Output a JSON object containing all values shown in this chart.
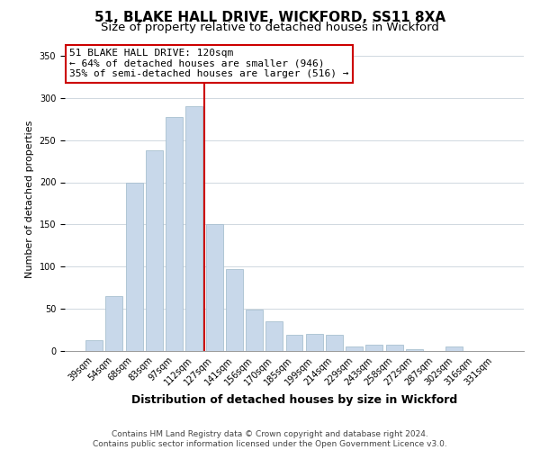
{
  "title": "51, BLAKE HALL DRIVE, WICKFORD, SS11 8XA",
  "subtitle": "Size of property relative to detached houses in Wickford",
  "xlabel": "Distribution of detached houses by size in Wickford",
  "ylabel": "Number of detached properties",
  "bar_labels": [
    "39sqm",
    "54sqm",
    "68sqm",
    "83sqm",
    "97sqm",
    "112sqm",
    "127sqm",
    "141sqm",
    "156sqm",
    "170sqm",
    "185sqm",
    "199sqm",
    "214sqm",
    "229sqm",
    "243sqm",
    "258sqm",
    "272sqm",
    "287sqm",
    "302sqm",
    "316sqm",
    "331sqm"
  ],
  "bar_values": [
    13,
    65,
    200,
    238,
    277,
    290,
    150,
    97,
    49,
    35,
    19,
    20,
    19,
    5,
    8,
    7,
    2,
    0,
    5,
    0,
    0
  ],
  "bar_color": "#c8d8ea",
  "bar_edge_color": "#a8c0d0",
  "vline_x": 5.5,
  "vline_color": "#cc0000",
  "annotation_title": "51 BLAKE HALL DRIVE: 120sqm",
  "annotation_line1": "← 64% of detached houses are smaller (946)",
  "annotation_line2": "35% of semi-detached houses are larger (516) →",
  "annotation_box_facecolor": "#ffffff",
  "annotation_box_edgecolor": "#cc0000",
  "ylim": [
    0,
    360
  ],
  "yticks": [
    0,
    50,
    100,
    150,
    200,
    250,
    300,
    350
  ],
  "background_color": "#ffffff",
  "footer_line1": "Contains HM Land Registry data © Crown copyright and database right 2024.",
  "footer_line2": "Contains public sector information licensed under the Open Government Licence v3.0.",
  "title_fontsize": 11,
  "subtitle_fontsize": 9.5,
  "xlabel_fontsize": 9,
  "ylabel_fontsize": 8,
  "tick_fontsize": 7,
  "footer_fontsize": 6.5,
  "ann_fontsize": 8
}
